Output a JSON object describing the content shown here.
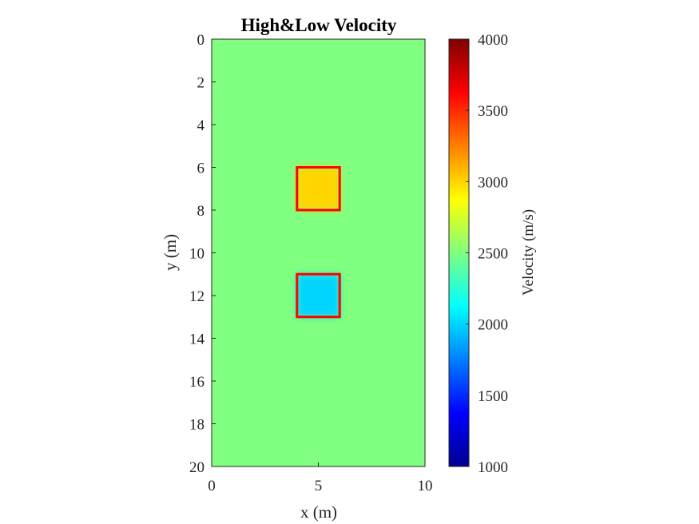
{
  "chart_data": {
    "type": "heatmap",
    "title": "High&Low Velocity",
    "xlabel": "x (m)",
    "ylabel": "y (m)",
    "xlim": [
      0,
      10
    ],
    "ylim": [
      0,
      20
    ],
    "y_direction": "reversed",
    "xticks": [
      0,
      5,
      10
    ],
    "yticks": [
      0,
      2,
      4,
      6,
      8,
      10,
      12,
      14,
      16,
      18,
      20
    ],
    "background_value": 2500,
    "colormap": "jet",
    "anomalies": [
      {
        "x_range": [
          4,
          6
        ],
        "y_range": [
          6,
          8
        ],
        "value": 3000,
        "outline_color": "#ff0000"
      },
      {
        "x_range": [
          4,
          6
        ],
        "y_range": [
          11,
          13
        ],
        "value": 2000,
        "outline_color": "#ff0000"
      }
    ],
    "colorbar": {
      "label": "Velocity (m/s)",
      "range": [
        1000,
        4000
      ],
      "ticks": [
        1000,
        1500,
        2000,
        2500,
        3000,
        3500,
        4000
      ]
    }
  }
}
